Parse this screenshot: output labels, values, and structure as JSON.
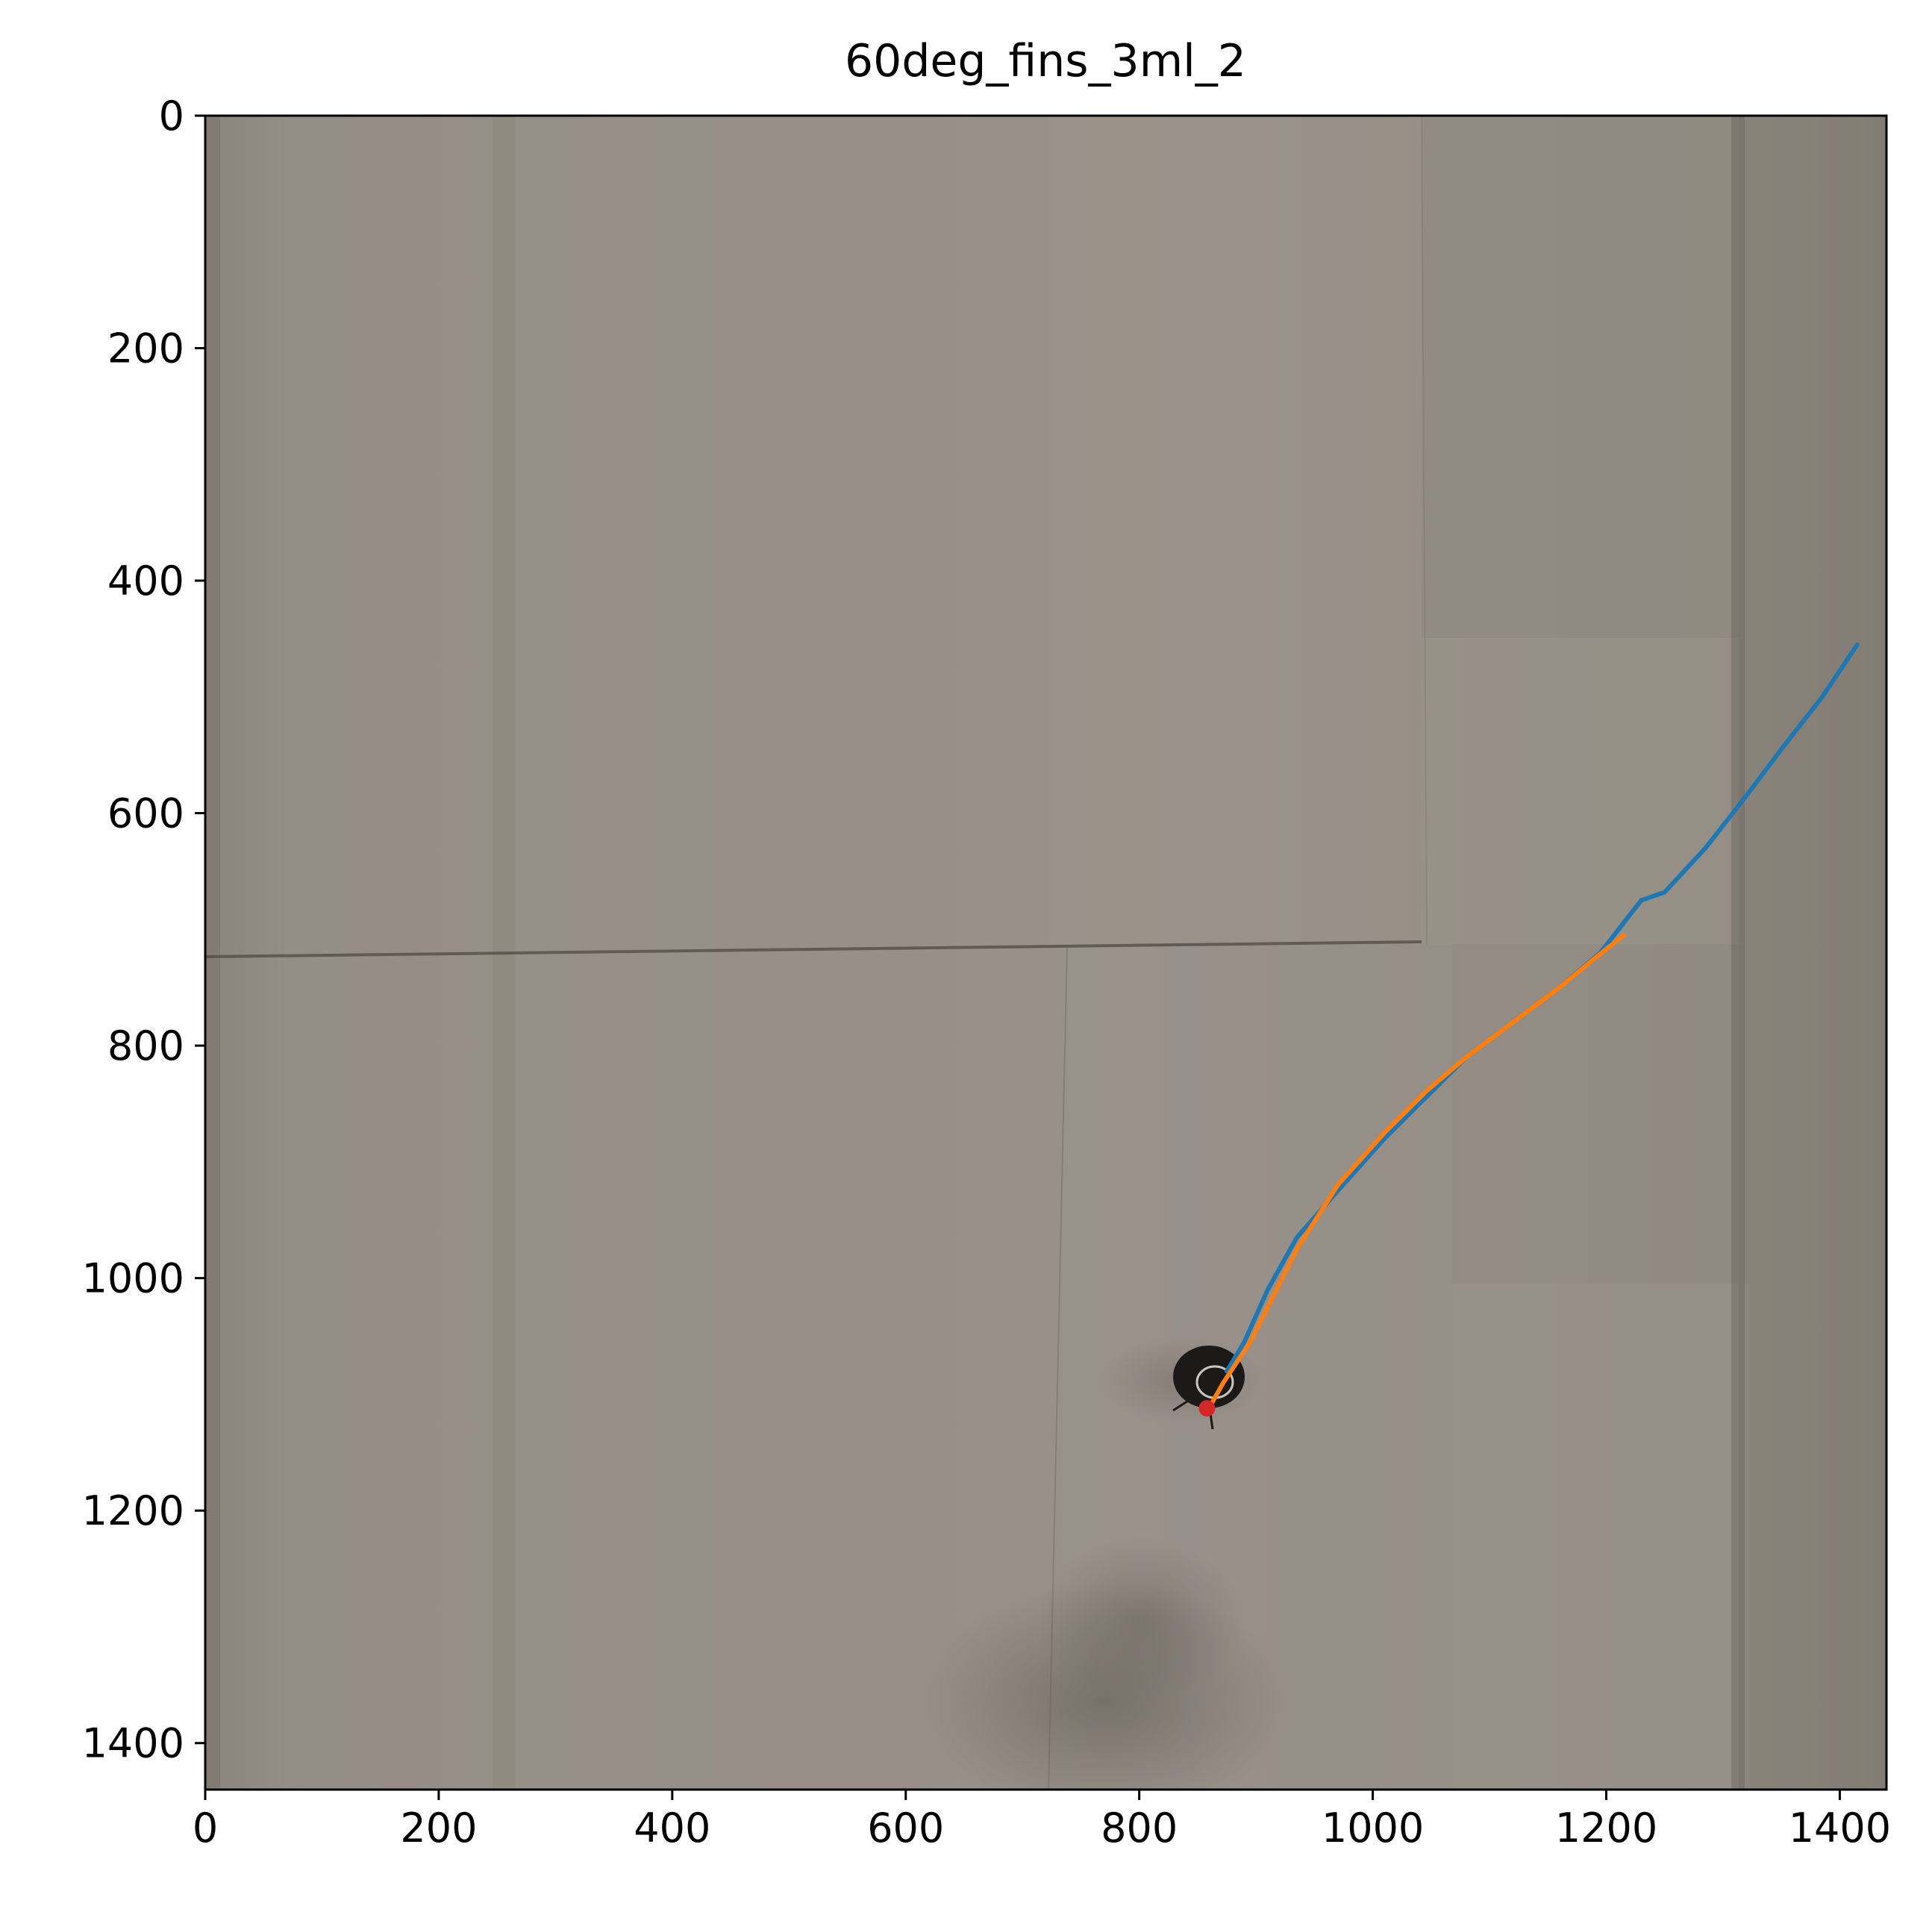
{
  "chart_data": {
    "type": "line",
    "title": "60deg_fins_3ml_2",
    "xlabel": "",
    "ylabel": "",
    "xlim": [
      0,
      1440
    ],
    "ylim": [
      1440,
      0
    ],
    "y_inverted": true,
    "grid": false,
    "background": "tank photograph with a dark particle near (860, 1100)",
    "xticks": [
      0,
      200,
      400,
      600,
      800,
      1000,
      1200,
      1400
    ],
    "yticks": [
      0,
      200,
      400,
      600,
      800,
      1000,
      1200,
      1400
    ],
    "series": [
      {
        "color": "#1f77b4",
        "x": [
          875,
          890,
          910,
          935,
          970,
          1010,
          1045,
          1080,
          1120,
          1160,
          1195,
          1230,
          1250,
          1285,
          1320,
          1350,
          1385,
          1415
        ],
        "y": [
          1080,
          1055,
          1010,
          965,
          925,
          880,
          845,
          810,
          780,
          750,
          720,
          675,
          668,
          630,
          585,
          545,
          500,
          455
        ]
      },
      {
        "color": "#ff7f0e",
        "x": [
          858,
          872,
          895,
          910,
          935,
          970,
          1010,
          1045,
          1080,
          1120,
          1160,
          1190,
          1215
        ],
        "y": [
          1115,
          1090,
          1055,
          1025,
          975,
          920,
          875,
          840,
          810,
          780,
          750,
          725,
          705
        ]
      }
    ],
    "markers": [
      {
        "color": "#d62728",
        "x": 858,
        "y": 1112
      }
    ]
  }
}
